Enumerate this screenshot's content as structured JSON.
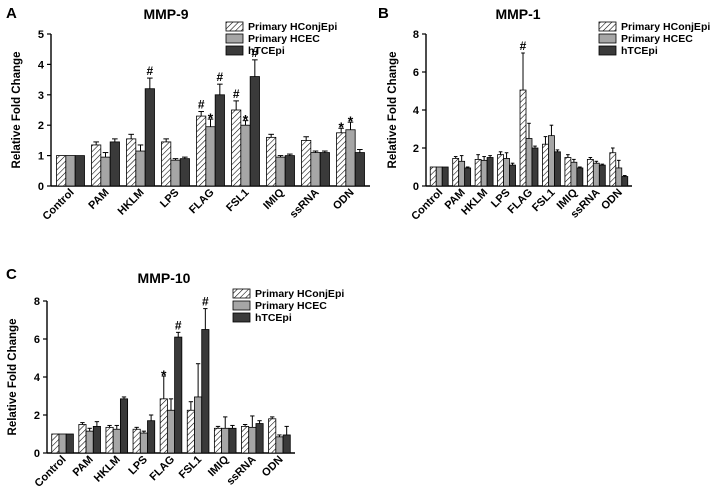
{
  "colors": {
    "series": [
      "#ffffff",
      "#a6a6a6",
      "#3a3a3a"
    ],
    "stroke": "#000000"
  },
  "chart_data": [
    {
      "panel_label": "A",
      "type": "bar",
      "title": "MMP-9",
      "xlabel": "",
      "ylabel": "Relative Fold Change",
      "ylim": [
        0,
        5
      ],
      "yticks": [
        "0",
        "1",
        "2",
        "3",
        "4",
        "5"
      ],
      "categories": [
        "Control",
        "PAM",
        "HKLM",
        "LPS",
        "FLAG",
        "FSL1",
        "IMIQ",
        "ssRNA",
        "ODN"
      ],
      "legend_position": "top-right",
      "series": [
        {
          "name": "Primary HConjEpi",
          "pattern": "hatched",
          "values": [
            1.0,
            1.35,
            1.55,
            1.45,
            2.3,
            2.5,
            1.6,
            1.5,
            1.75
          ],
          "errors": [
            0,
            0.1,
            0.15,
            0.1,
            0.15,
            0.3,
            0.1,
            0.12,
            0.15
          ]
        },
        {
          "name": "Primary HCEC",
          "pattern": "light-gray",
          "values": [
            1.0,
            0.95,
            1.15,
            0.85,
            1.95,
            2.0,
            0.95,
            1.1,
            1.85
          ],
          "errors": [
            0,
            0.15,
            0.2,
            0.05,
            0.25,
            0.15,
            0.05,
            0.05,
            0.25
          ]
        },
        {
          "name": "hTCEpi",
          "pattern": "dark-gray",
          "values": [
            1.0,
            1.45,
            3.2,
            0.9,
            3.0,
            3.6,
            1.0,
            1.1,
            1.1
          ],
          "errors": [
            0,
            0.1,
            0.35,
            0.05,
            0.35,
            0.55,
            0.05,
            0.05,
            0.1
          ]
        }
      ],
      "annotations": [
        {
          "text": "#",
          "category": "HKLM",
          "series": "hTCEpi"
        },
        {
          "text": "#",
          "category": "FLAG",
          "series": "Primary HConjEpi"
        },
        {
          "text": "*",
          "category": "FLAG",
          "series": "Primary HCEC"
        },
        {
          "text": "#",
          "category": "FLAG",
          "series": "hTCEpi"
        },
        {
          "text": "#",
          "category": "FSL1",
          "series": "Primary HConjEpi"
        },
        {
          "text": "*",
          "category": "FSL1",
          "series": "Primary HCEC"
        },
        {
          "text": "#",
          "category": "FSL1",
          "series": "hTCEpi"
        },
        {
          "text": "*",
          "category": "ODN",
          "series": "Primary HConjEpi"
        },
        {
          "text": "*",
          "category": "ODN",
          "series": "Primary HCEC"
        }
      ]
    },
    {
      "panel_label": "B",
      "type": "bar",
      "title": "MMP-1",
      "xlabel": "",
      "ylabel": "Relative Fold Change",
      "ylim": [
        0,
        8
      ],
      "yticks": [
        "0",
        "2",
        "4",
        "6",
        "8"
      ],
      "categories": [
        "Control",
        "PAM",
        "HKLM",
        "LPS",
        "FLAG",
        "FSL1",
        "IMIQ",
        "ssRNA",
        "ODN"
      ],
      "legend_position": "top-right",
      "series": [
        {
          "name": "Primary HConjEpi",
          "pattern": "hatched",
          "values": [
            1.0,
            1.45,
            1.4,
            1.65,
            5.05,
            2.2,
            1.5,
            1.4,
            1.75
          ],
          "errors": [
            0,
            0.1,
            0.25,
            0.15,
            1.95,
            0.4,
            0.15,
            0.1,
            0.25
          ]
        },
        {
          "name": "Primary HCEC",
          "pattern": "light-gray",
          "values": [
            1.0,
            1.3,
            1.35,
            1.45,
            2.5,
            2.65,
            1.25,
            1.2,
            0.95
          ],
          "errors": [
            0,
            0.3,
            0.2,
            0.3,
            0.8,
            0.55,
            0.15,
            0.1,
            0.4
          ]
        },
        {
          "name": "hTCEpi",
          "pattern": "dark-gray",
          "values": [
            1.0,
            0.95,
            1.5,
            1.1,
            2.0,
            1.8,
            0.95,
            1.1,
            0.5
          ],
          "errors": [
            0,
            0.05,
            0.1,
            0.1,
            0.1,
            0.1,
            0.05,
            0.05,
            0.05
          ]
        }
      ],
      "annotations": [
        {
          "text": "#",
          "category": "FLAG",
          "series": "Primary HConjEpi"
        }
      ]
    },
    {
      "panel_label": "C",
      "type": "bar",
      "title": "MMP-10",
      "xlabel": "",
      "ylabel": "Relative Fold Change",
      "ylim": [
        0,
        8
      ],
      "yticks": [
        "0",
        "2",
        "4",
        "6",
        "8"
      ],
      "categories": [
        "Control",
        "PAM",
        "HKLM",
        "LPS",
        "FLAG",
        "FSL1",
        "IMIQ",
        "ssRNA",
        "ODN"
      ],
      "legend_position": "top-right",
      "series": [
        {
          "name": "Primary HConjEpi",
          "pattern": "hatched",
          "values": [
            1.0,
            1.5,
            1.35,
            1.25,
            2.85,
            2.25,
            1.3,
            1.4,
            1.8
          ],
          "errors": [
            0,
            0.1,
            0.1,
            0.1,
            1.2,
            0.45,
            0.1,
            0.1,
            0.1
          ]
        },
        {
          "name": "Primary HCEC",
          "pattern": "light-gray",
          "values": [
            1.0,
            1.15,
            1.25,
            1.05,
            2.25,
            2.95,
            1.3,
            1.35,
            0.85
          ],
          "errors": [
            0,
            0.15,
            0.2,
            0.1,
            0.6,
            1.75,
            0.6,
            0.6,
            0.1
          ]
        },
        {
          "name": "hTCEpi",
          "pattern": "dark-gray",
          "values": [
            1.0,
            1.4,
            2.85,
            1.7,
            6.1,
            6.5,
            1.3,
            1.55,
            0.95
          ],
          "errors": [
            0,
            0.25,
            0.1,
            0.3,
            0.25,
            1.1,
            0.15,
            0.15,
            0.45
          ]
        }
      ],
      "annotations": [
        {
          "text": "*",
          "category": "FLAG",
          "series": "Primary HConjEpi"
        },
        {
          "text": "#",
          "category": "FLAG",
          "series": "hTCEpi"
        },
        {
          "text": "#",
          "category": "FSL1",
          "series": "hTCEpi"
        }
      ]
    }
  ]
}
